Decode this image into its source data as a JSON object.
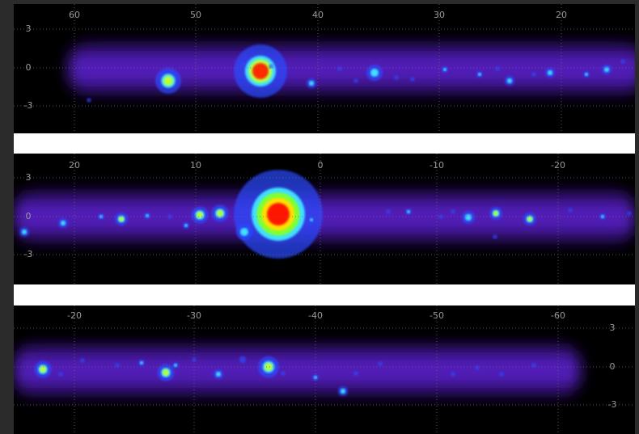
{
  "panels": [
    {
      "x_ticks": [
        60,
        50,
        40,
        30,
        20
      ],
      "y_ticks": [
        3,
        0,
        -3
      ]
    },
    {
      "x_ticks": [
        20,
        10,
        0,
        -10,
        -20
      ],
      "y_ticks": [
        3,
        0,
        -3
      ]
    },
    {
      "x_ticks": [
        -20,
        -30,
        -40,
        -50,
        -60
      ],
      "y_ticks": [
        3,
        0,
        -3
      ]
    }
  ]
}
